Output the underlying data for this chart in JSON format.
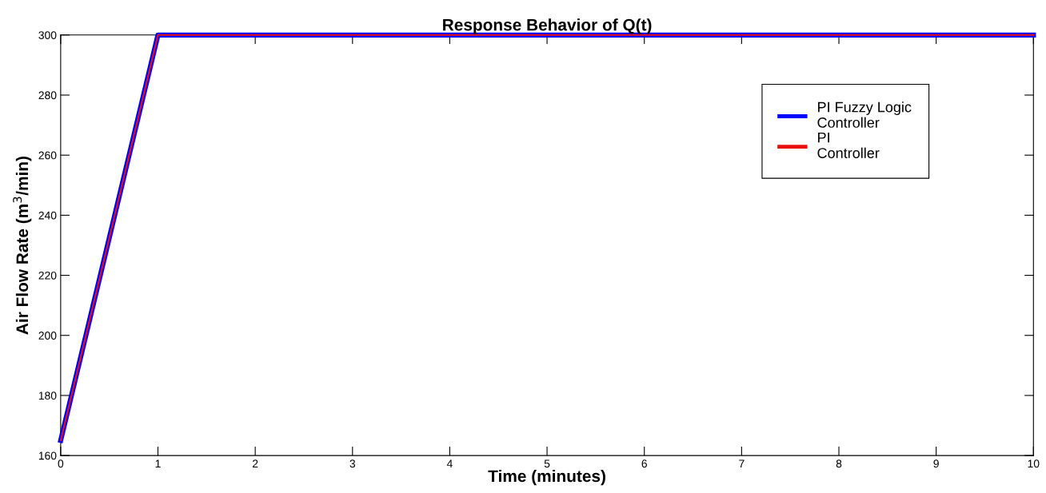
{
  "chart_data": {
    "type": "line",
    "title": "Response Behavior of Q(t)",
    "xlabel": "Time (minutes)",
    "ylabel": "Air Flow Rate (m$^{3}$/min)",
    "x": [
      0,
      1,
      10
    ],
    "series": [
      {
        "name": "PI Fuzzy Logic\nController",
        "color": "#0000ff",
        "values": [
          165,
          300,
          300
        ]
      },
      {
        "name": "PI\nController",
        "color": "#e8100a",
        "values": [
          165,
          300,
          300
        ]
      }
    ],
    "xlim": [
      0,
      10
    ],
    "xticks": [
      0,
      1,
      2,
      3,
      4,
      5,
      6,
      7,
      8,
      9,
      10
    ],
    "ylim": [
      160,
      300
    ],
    "yticks": [
      160,
      180,
      200,
      220,
      240,
      260,
      280,
      300
    ],
    "grid": false,
    "legend": "top right",
    "marker": "none",
    "line_style": "solid"
  }
}
